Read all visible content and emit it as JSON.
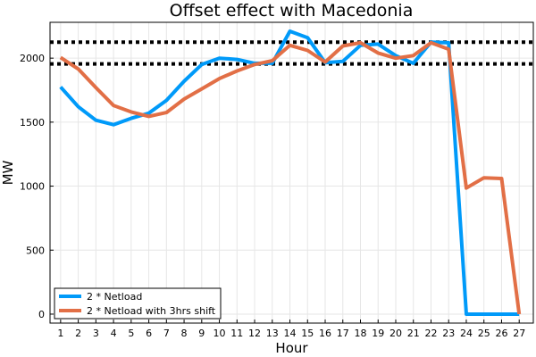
{
  "chart_data": {
    "type": "line",
    "title": "Offset effect with Macedonia",
    "xlabel": "Hour",
    "ylabel": "MW",
    "x": [
      1,
      2,
      3,
      4,
      5,
      6,
      7,
      8,
      9,
      10,
      11,
      12,
      13,
      14,
      15,
      16,
      17,
      18,
      19,
      20,
      21,
      22,
      23,
      24,
      25,
      26,
      27
    ],
    "xlim": [
      0.4,
      27.8
    ],
    "ylim": [
      -70,
      2280
    ],
    "yticks": [
      0,
      500,
      1000,
      1500,
      2000
    ],
    "grid": true,
    "legend_position": "bottom-left",
    "series": [
      {
        "name": "2 * Netload",
        "color": "#009af9",
        "values": [
          1775,
          1620,
          1515,
          1480,
          1530,
          1570,
          1670,
          1820,
          1950,
          2000,
          1990,
          1960,
          1960,
          2210,
          2160,
          1965,
          1975,
          2100,
          2110,
          2020,
          1960,
          2125,
          2120,
          0,
          0,
          0,
          0
        ]
      },
      {
        "name": "2 * Netload with 3hrs shift",
        "color": "#e26f46",
        "values": [
          2005,
          1915,
          1770,
          1630,
          1580,
          1545,
          1575,
          1680,
          1760,
          1840,
          1900,
          1950,
          1980,
          2100,
          2060,
          1970,
          2095,
          2120,
          2040,
          2000,
          2020,
          2120,
          2070,
          985,
          1065,
          1060,
          0
        ]
      }
    ],
    "hlines": [
      {
        "y": 2125,
        "style": "dotted",
        "color": "#000000"
      },
      {
        "y": 1955,
        "style": "dotted",
        "color": "#000000"
      }
    ]
  }
}
